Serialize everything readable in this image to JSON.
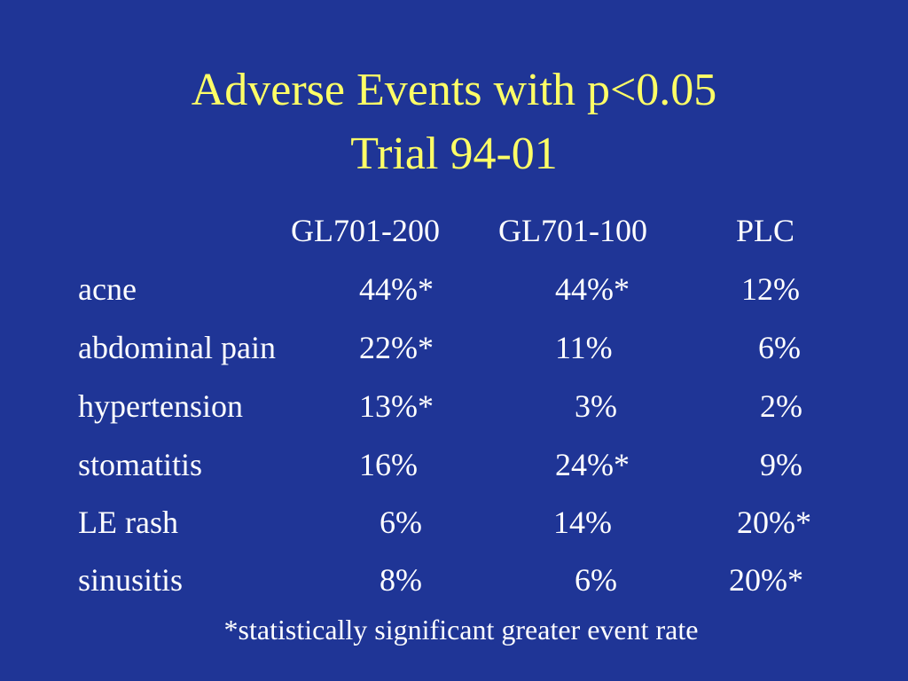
{
  "slide": {
    "title_line1": "Adverse Events with p<0.05",
    "title_line2": "Trial 94-01",
    "colors": {
      "background": "#1f3596",
      "title": "#ffff66",
      "body_text": "#ffffff"
    }
  },
  "table": {
    "columns": [
      "GL701-200",
      "GL701-100",
      "PLC"
    ],
    "rows": [
      {
        "label": "acne",
        "values": [
          "44%*",
          "44%*",
          "12%"
        ]
      },
      {
        "label": "abdominal pain",
        "values": [
          "22%*",
          "11%",
          "6%"
        ]
      },
      {
        "label": "hypertension",
        "values": [
          "13%*",
          "3%",
          "2%"
        ]
      },
      {
        "label": "stomatitis",
        "values": [
          "16%",
          "24%*",
          "9%"
        ]
      },
      {
        "label": "LE rash",
        "values": [
          "6%",
          "14%",
          "20%*"
        ]
      },
      {
        "label": "sinusitis",
        "values": [
          "8%",
          "6%",
          "20%*"
        ]
      }
    ]
  },
  "footnote": "*statistically significant greater event rate"
}
